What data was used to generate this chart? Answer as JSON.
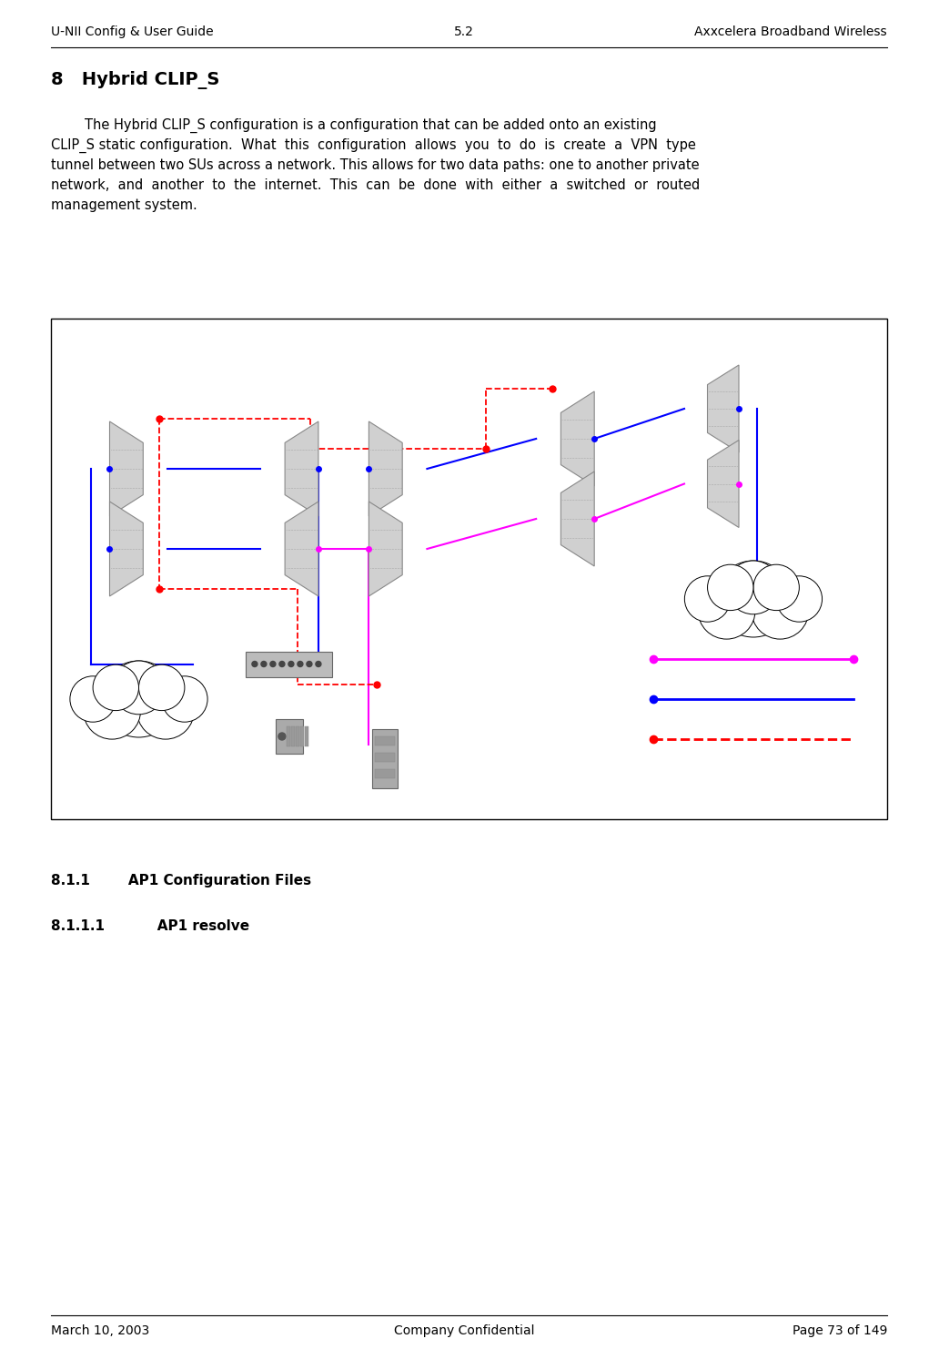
{
  "header_left": "U-NII Config & User Guide",
  "header_center": "5.2",
  "header_right": "Axxcelera Broadband Wireless",
  "section_title": "8   Hybrid CLIP_S",
  "body_text_lines": [
    "        The Hybrid CLIP_S configuration is a configuration that can be added onto an existing",
    "CLIP_S static configuration.  What  this  configuration  allows  you  to  do  is  create  a  VPN  type",
    "tunnel between two SUs across a network. This allows for two data paths: one to another private",
    "network,  and  another  to  the  internet.  This  can  be  done  with  either  a  switched  or  routed",
    "management system."
  ],
  "section_811": "8.1.1        AP1 Configuration Files",
  "section_8111": "8.1.1.1           AP1 resolve",
  "footer_left": "March 10, 2003",
  "footer_center": "Company Confidential",
  "footer_right": "Page 73 of 149",
  "bg_color": "#ffffff",
  "text_color": "#000000"
}
